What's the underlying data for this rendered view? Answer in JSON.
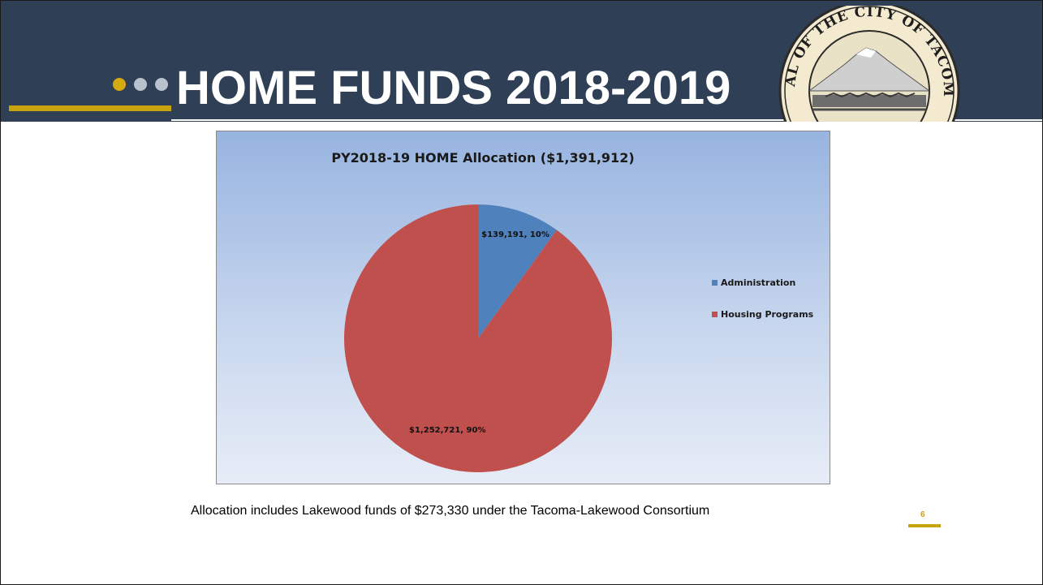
{
  "slide": {
    "title": "HOME FUNDS 2018-2019",
    "footnote": "Allocation includes Lakewood funds of $273,330 under the Tacoma-Lakewood Consortium",
    "page_number": "6",
    "seal_text": "SEAL OF THE CITY OF TACOMA",
    "colors": {
      "header_bg": "#2f3f55",
      "accent_gold": "#c9a20e",
      "dot_inactive": "#b9c1cd"
    }
  },
  "chart_data": {
    "type": "pie",
    "title": "PY2018-19 HOME Allocation ($1,391,912)",
    "categories": [
      "Administration",
      "Housing Programs"
    ],
    "values": [
      139191,
      1252721
    ],
    "percentages": [
      10,
      90
    ],
    "data_labels": [
      "$139,191, 10%",
      "$1,252,721, 90%"
    ],
    "colors": [
      "#4f81bd",
      "#c0504d"
    ],
    "legend_position": "right",
    "start_angle": "12 o'clock, clockwise"
  }
}
